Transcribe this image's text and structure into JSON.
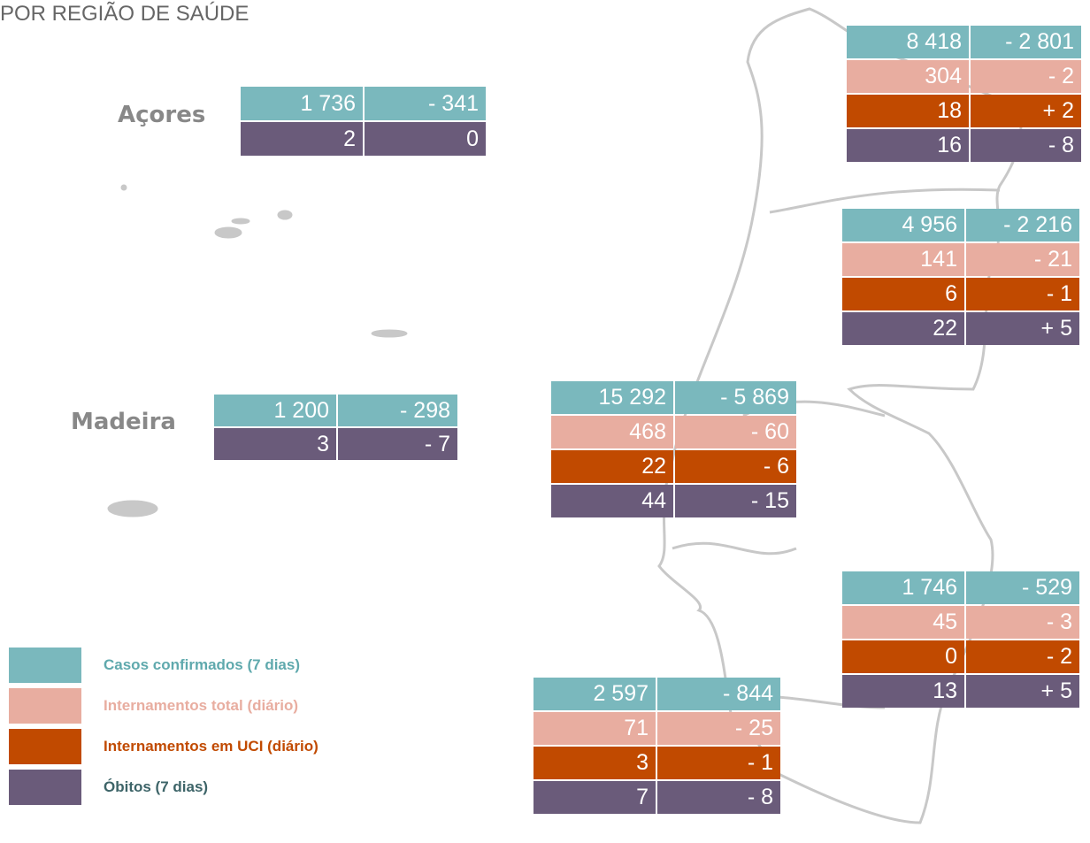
{
  "header": {
    "title": "POR REGIÃO DE SAÚDE"
  },
  "regions": [
    {
      "label": "Açores",
      "rows": [
        [
          "1 736",
          "- 341"
        ],
        [
          "2",
          "0"
        ]
      ]
    },
    {
      "label": "Madeira",
      "rows": [
        [
          "1 200",
          "- 298"
        ],
        [
          "3",
          "- 7"
        ]
      ]
    },
    {
      "rows": [
        [
          "8 418",
          "- 2 801"
        ],
        [
          "304",
          "- 2"
        ],
        [
          "18",
          "+ 2"
        ],
        [
          "16",
          "- 8"
        ]
      ]
    },
    {
      "rows": [
        [
          "4 956",
          "- 2 216"
        ],
        [
          "141",
          "- 21"
        ],
        [
          "6",
          "- 1"
        ],
        [
          "22",
          "+ 5"
        ]
      ]
    },
    {
      "rows": [
        [
          "15 292",
          "- 5 869"
        ],
        [
          "468",
          "- 60"
        ],
        [
          "22",
          "- 6"
        ],
        [
          "44",
          "- 15"
        ]
      ]
    },
    {
      "rows": [
        [
          "1 746",
          "- 529"
        ],
        [
          "45",
          "- 3"
        ],
        [
          "0",
          "- 2"
        ],
        [
          "13",
          "+ 5"
        ]
      ]
    },
    {
      "rows": [
        [
          "2 597",
          "- 844"
        ],
        [
          "71",
          "- 25"
        ],
        [
          "3",
          "- 1"
        ],
        [
          "7",
          "- 8"
        ]
      ]
    }
  ],
  "legend": [
    "Casos confirmados (7 dias)",
    "Internamentos total (diário)",
    "Internamentos em UCI (diário)",
    "Óbitos (7 dias)"
  ]
}
